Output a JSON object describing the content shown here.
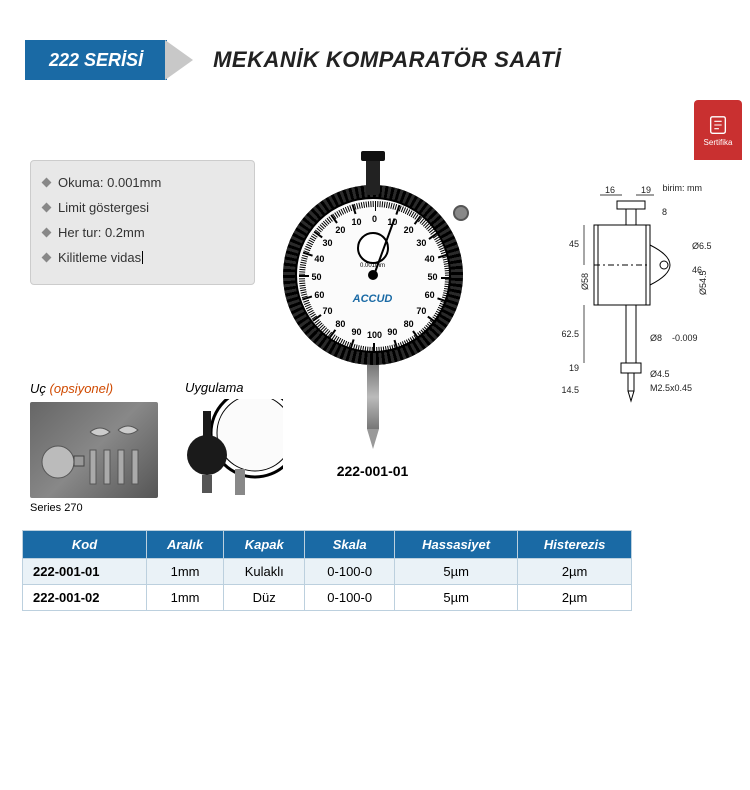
{
  "header": {
    "series_label": "222 SERİSİ",
    "title": "MEKANİK KOMPARATÖR SAATİ",
    "series_bg": "#1a6aa5",
    "arrow_color": "#c8c8c8"
  },
  "certificate": {
    "label": "Sertifika",
    "bg": "#c93030"
  },
  "specs": {
    "items": [
      "Okuma: 0.001mm",
      "Limit göstergesi",
      "Her tur: 0.2mm",
      "Kilitleme vidas"
    ]
  },
  "gauge": {
    "brand": "ACCUD",
    "reading_text": "0.001mm",
    "model": "222-001-01",
    "dial_numbers": [
      "0",
      "10",
      "20",
      "30",
      "40",
      "50",
      "60",
      "70",
      "80",
      "90",
      "100",
      "90",
      "80",
      "70",
      "60",
      "50",
      "40",
      "30",
      "20",
      "10"
    ]
  },
  "drawing": {
    "unit_label": "birim: mm",
    "dims": {
      "a": "16",
      "b": "19",
      "c": "8",
      "d": "45",
      "e": "Ø58",
      "f": "Ø6.5",
      "g": "46",
      "h": "Ø54.5",
      "i": "62.5",
      "j": "19",
      "k": "Ø8",
      "l": "-0.009",
      "m": "14.5",
      "n": "Ø4.5",
      "o": "M2.5x0.45"
    }
  },
  "uc": {
    "title": "Uç",
    "optional": "(opsiyonel)",
    "series": "Series 270"
  },
  "app": {
    "title": "Uygulama"
  },
  "table": {
    "columns": [
      "Kod",
      "Aralık",
      "Kapak",
      "Skala",
      "Hassasiyet",
      "Histerezis"
    ],
    "rows": [
      [
        "222-001-01",
        "1mm",
        "Kulaklı",
        "0-100-0",
        "5µm",
        "2µm"
      ],
      [
        "222-001-02",
        "1mm",
        "Düz",
        "0-100-0",
        "5µm",
        "2µm"
      ]
    ],
    "header_bg": "#1a6aa5",
    "row_alt_bg": "#eaf2f7",
    "border_color": "#bcd0de"
  }
}
